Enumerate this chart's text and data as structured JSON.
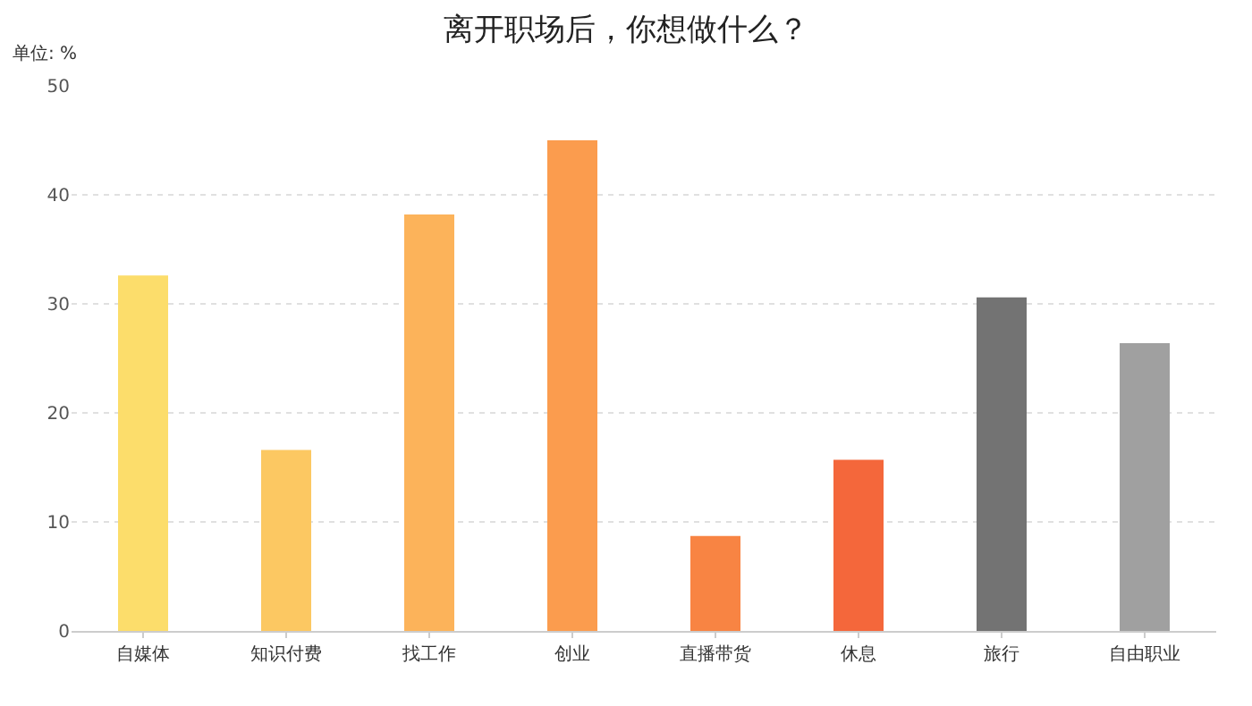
{
  "chart_data": {
    "type": "bar",
    "title": "离开职场后，你想做什么？",
    "ylabel": "单位: %",
    "categories": [
      "自媒体",
      "知识付费",
      "找工作",
      "创业",
      "直播带货",
      "休息",
      "旅行",
      "自由职业"
    ],
    "values": [
      32.6,
      16.6,
      38.2,
      45.0,
      8.7,
      15.7,
      30.6,
      26.4
    ],
    "colors": [
      "#fcdd6b",
      "#fcc862",
      "#fcb35a",
      "#fb9c4e",
      "#f88443",
      "#f4673b",
      "#737373",
      "#a0a0a0"
    ],
    "ylim": [
      0,
      50
    ],
    "yticks": [
      0,
      10,
      20,
      30,
      40,
      50
    ],
    "grid": "y"
  }
}
